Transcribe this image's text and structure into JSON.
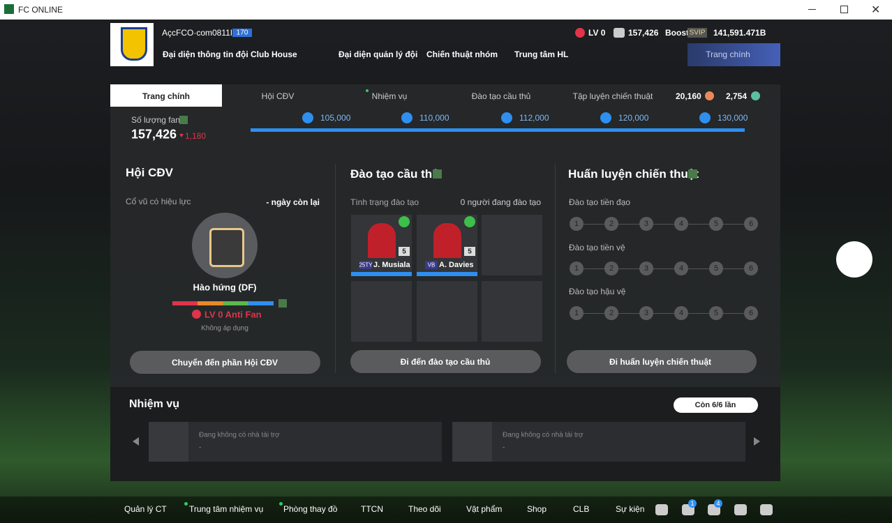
{
  "window": {
    "title": "FC ONLINE"
  },
  "header": {
    "team_name": "AçcFCO·com0811I",
    "team_level": "170",
    "fan_level": "LV 0",
    "coins": "157,426",
    "boost": "Boost",
    "svip": "SVIP",
    "balance": "141,591.471B",
    "nav": [
      "Đại diện thông tin đội",
      "Club House",
      "Đại diện quản lý đội",
      "Chiến thuật nhóm",
      "Trung tâm HL"
    ],
    "home_button": "Trang chính"
  },
  "tabs": {
    "items": [
      "Trang chính",
      "Hội CĐV",
      "Nhiệm vụ",
      "Đào tạo cầu thủ",
      "Tập luyện chiến thuật"
    ],
    "currency_1": "20,160",
    "currency_2": "2,754"
  },
  "fans": {
    "label": "Số lượng fan",
    "count": "157,426",
    "change": "1,180",
    "milestones": [
      "105,000",
      "110,000",
      "112,000",
      "120,000",
      "130,000"
    ]
  },
  "fan_club": {
    "title": "Hội CĐV",
    "effect_label": "Cổ vũ có hiệu lực",
    "days_left": "- ngày còn lại",
    "mood": "Hào hứng (DF)",
    "level": "LV 0 Anti Fan",
    "status": "Không áp dụng",
    "button": "Chuyển đến phần Hội CĐV"
  },
  "training": {
    "title": "Đào tạo cầu thủ",
    "status_label": "Tình trạng đào tạo",
    "count": "0 người đang đào tạo",
    "players": [
      {
        "season": "25TY",
        "name": "J. Musiala",
        "level": "5"
      },
      {
        "season": "VB",
        "name": "A. Davies",
        "level": "5"
      }
    ],
    "button": "Đi đến đào tạo cầu thủ"
  },
  "tactics": {
    "title": "Huấn luyện chiến thuật",
    "rows": [
      {
        "label": "Đào tạo tiền đạo",
        "steps": [
          "1",
          "2",
          "3",
          "4",
          "5",
          "6"
        ]
      },
      {
        "label": "Đào tạo tiền vệ",
        "steps": [
          "1",
          "2",
          "3",
          "4",
          "5",
          "6"
        ]
      },
      {
        "label": "Đào tạo hậu vệ",
        "steps": [
          "1",
          "2",
          "3",
          "4",
          "5",
          "6"
        ]
      }
    ],
    "button": "Đi huấn luyện chiến thuật"
  },
  "missions": {
    "title": "Nhiệm vụ",
    "remaining": "Còn 6/6 lần",
    "cards": [
      {
        "text": "Đang không có nhà tài trợ",
        "sub": "-"
      },
      {
        "text": "Đang không có nhà tài trợ",
        "sub": "-"
      }
    ]
  },
  "bottom_nav": {
    "items": [
      "Quản lý CT",
      "Trung tâm nhiệm vụ",
      "Phòng thay đồ",
      "TTCN",
      "Theo dõi",
      "Vật phẩm",
      "Shop",
      "CLB",
      "Sự kiện"
    ],
    "badges": [
      "1",
      "4"
    ]
  }
}
